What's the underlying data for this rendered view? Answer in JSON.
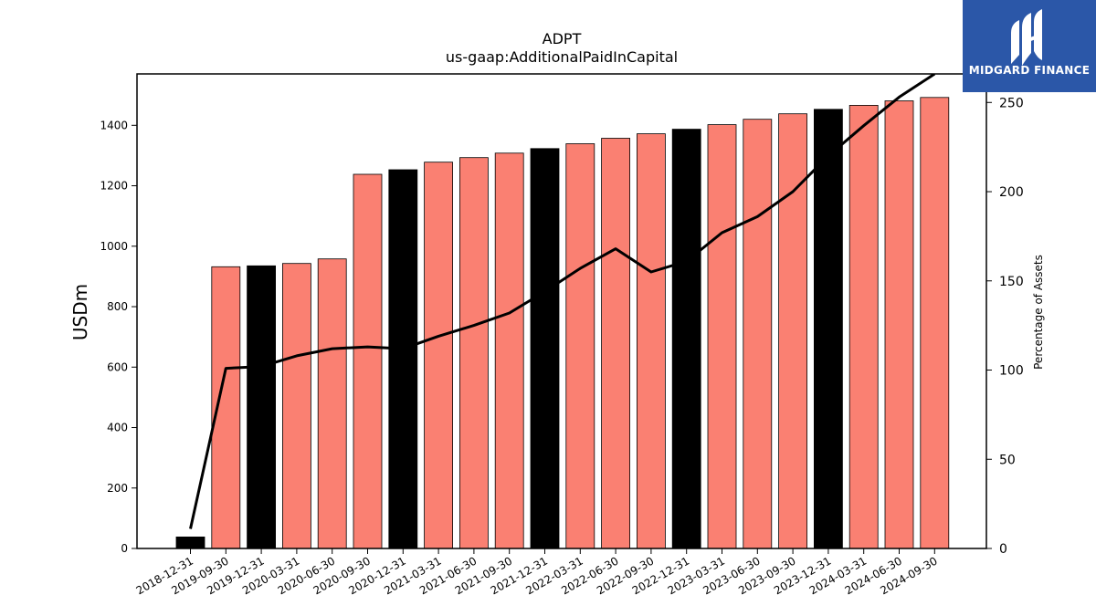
{
  "brand": {
    "name": "MIDGARD FINANCE",
    "color": "#2b57a8"
  },
  "chart_data": {
    "type": "bar",
    "title": "ADPT",
    "subtitle": "us-gaap:AdditionalPaidInCapital",
    "ylabel": "USDm",
    "y2label": "Percentage of Assets",
    "ylim": [
      0,
      1570
    ],
    "y2lim": [
      0,
      266
    ],
    "yticks": [
      0,
      200,
      400,
      600,
      800,
      1000,
      1200,
      1400
    ],
    "y2ticks": [
      0,
      50,
      100,
      150,
      200,
      250
    ],
    "grid": false,
    "categories": [
      "2018-12-31",
      "2019-09-30",
      "2019-12-31",
      "2020-03-31",
      "2020-06-30",
      "2020-09-30",
      "2020-12-31",
      "2021-03-31",
      "2021-06-30",
      "2021-09-30",
      "2021-12-31",
      "2022-03-31",
      "2022-06-30",
      "2022-09-30",
      "2022-12-31",
      "2023-03-31",
      "2023-06-30",
      "2023-09-30",
      "2023-12-31",
      "2024-03-31",
      "2024-06-30",
      "2024-09-30"
    ],
    "series": [
      {
        "values": [
          38,
          932,
          935,
          943,
          958,
          1238,
          1253,
          1278,
          1293,
          1308,
          1323,
          1339,
          1357,
          1372,
          1387,
          1402,
          1420,
          1438,
          1453,
          1466,
          1481,
          1492
        ],
        "bar_colors": [
          "#000000",
          "#fa8072",
          "#000000",
          "#fa8072",
          "#fa8072",
          "#fa8072",
          "#000000",
          "#fa8072",
          "#fa8072",
          "#fa8072",
          "#000000",
          "#fa8072",
          "#fa8072",
          "#fa8072",
          "#000000",
          "#fa8072",
          "#fa8072",
          "#fa8072",
          "#000000",
          "#fa8072",
          "#fa8072",
          "#fa8072"
        ],
        "axis": "left"
      },
      {
        "type": "line",
        "values": [
          11,
          101,
          102,
          108,
          112,
          113,
          112,
          119,
          125,
          132,
          144,
          157,
          168,
          155,
          161,
          177,
          186,
          200,
          220,
          237,
          253,
          266
        ],
        "color": "#000000",
        "axis": "right"
      }
    ]
  }
}
